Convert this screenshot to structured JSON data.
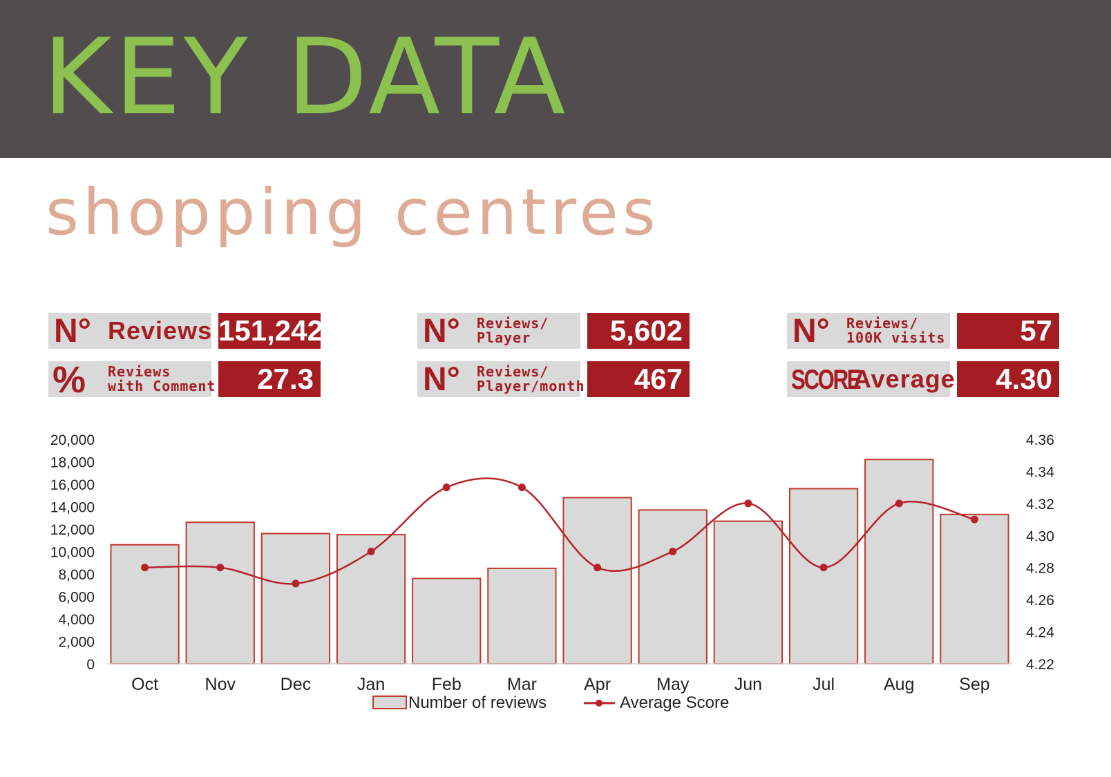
{
  "header": {
    "title": "KEY DATA"
  },
  "subtitle": "shopping centres",
  "colors": {
    "header_bg": "#514c4d",
    "title_green": "#8cc04f",
    "subtitle_peach": "#deab96",
    "accent_red": "#a51d22",
    "label_gray": "#d9d9d9",
    "bar_fill": "#d9d9d9"
  },
  "stats": {
    "reviews": {
      "prefix": "N°",
      "label_line1": "Reviews",
      "label_line2": "",
      "value": "151,242"
    },
    "comment": {
      "prefix": "%",
      "label_line1": "Reviews",
      "label_line2": "with Comment",
      "value": "27.3"
    },
    "per_player": {
      "prefix": "N°",
      "label_line1": "Reviews/",
      "label_line2": "Player",
      "value": "5,602"
    },
    "per_player_month": {
      "prefix": "N°",
      "label_line1": "Reviews/",
      "label_line2": "Player/month",
      "value": "467"
    },
    "per_visits": {
      "prefix": "N°",
      "label_line1": "Reviews/",
      "label_line2": "100K visits",
      "value": "57"
    },
    "score": {
      "prefix": "SCORE",
      "label_line1": "Average",
      "label_line2": "",
      "value": "4.30"
    }
  },
  "chart_data": {
    "type": "bar",
    "categories": [
      "Oct",
      "Nov",
      "Dec",
      "Jan",
      "Feb",
      "Mar",
      "Apr",
      "May",
      "Jun",
      "Jul",
      "Aug",
      "Sep"
    ],
    "series": [
      {
        "name": "Number of reviews",
        "type": "bar",
        "axis": "left",
        "values": [
          10600,
          12600,
          11600,
          11500,
          7600,
          8500,
          14800,
          13700,
          12700,
          15600,
          18200,
          13300
        ]
      },
      {
        "name": "Average Score",
        "type": "line",
        "axis": "right",
        "values": [
          4.28,
          4.28,
          4.27,
          4.29,
          4.33,
          4.33,
          4.28,
          4.29,
          4.32,
          4.28,
          4.32,
          4.31
        ]
      }
    ],
    "y_left": {
      "min": 0,
      "max": 20000,
      "ticks": [
        "0",
        "2,000",
        "4,000",
        "6,000",
        "8,000",
        "10,000",
        "12,000",
        "14,000",
        "16,000",
        "18,000",
        "20,000"
      ]
    },
    "y_right": {
      "min": 4.22,
      "max": 4.36,
      "ticks": [
        "4.22",
        "4.24",
        "4.26",
        "4.28",
        "4.30",
        "4.32",
        "4.34",
        "4.36"
      ]
    },
    "grid": false,
    "legend_position": "bottom"
  }
}
